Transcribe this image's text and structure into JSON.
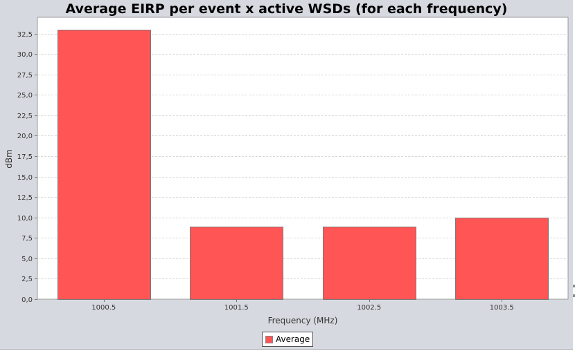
{
  "chart_data": {
    "type": "bar",
    "title": "Average EIRP per event x active WSDs (for each frequency)",
    "xlabel": "Frequency (MHz)",
    "ylabel": "dBm",
    "categories": [
      "1000.5",
      "1001.5",
      "1002.5",
      "1003.5"
    ],
    "series": [
      {
        "name": "Average",
        "values": [
          33.0,
          8.9,
          8.9,
          10.0
        ],
        "color": "#ff5555"
      }
    ],
    "ylim": [
      0,
      34.5
    ],
    "yticks": [
      0,
      2.5,
      5,
      7.5,
      10,
      12.5,
      15,
      17.5,
      20,
      22.5,
      25,
      27.5,
      30,
      32.5
    ],
    "ytick_labels": [
      "0,0",
      "2,5",
      "5,0",
      "7,5",
      "10,0",
      "12,5",
      "15,0",
      "17,5",
      "20,0",
      "22,5",
      "25,0",
      "27,5",
      "30,0",
      "32,5"
    ],
    "grid": true,
    "legend": "bottom-center"
  }
}
